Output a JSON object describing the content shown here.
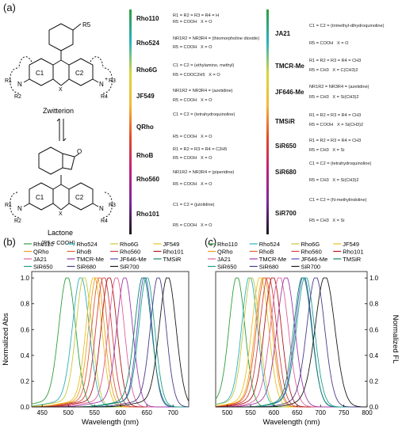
{
  "panel_labels": {
    "a": "(a)",
    "b": "(b)",
    "c": "(c)"
  },
  "structure": {
    "zwitterion_label": "Zwitterion",
    "lactone_label": "Lactone",
    "lactone_note": "(R5 = COOH)",
    "atoms": {
      "r5": "R5",
      "n": "N",
      "r1": "R1",
      "r2": "R2",
      "r3": "R3",
      "r4": "R4",
      "c1": "C1",
      "c2": "C2",
      "x": "X",
      "o": "O",
      "plus": "+"
    }
  },
  "gradient_colors": [
    "#2e9e3e",
    "#2bb0c0",
    "#d8d83a",
    "#f4b83a",
    "#e04a2a",
    "#c0207a",
    "#7a2a9a",
    "#1a1a1a"
  ],
  "dyes_left": [
    {
      "name": "Rho110",
      "lines": [
        "R1 = R2 = R3 = R4 = H",
        "R5 = COOH   X = O"
      ]
    },
    {
      "name": "Rho524",
      "lines": [
        "NR1R2 = NR3R4 = (thiomorpholine dioxide)",
        "R5 = COOH   X = O"
      ]
    },
    {
      "name": "Rho6G",
      "lines": [
        "C1 = C2 = (ethylamino, methyl)",
        "R5 = COOC2H5   X = O"
      ]
    },
    {
      "name": "JF549",
      "lines": [
        "NR1R2 = NR3R4 = (azetidine)",
        "R5 = COOH   X = O"
      ]
    },
    {
      "name": "QRho",
      "lines": [
        "C1 = C2 = (tetrahydroquinoline)",
        "R5 = COOH   X = O"
      ]
    },
    {
      "name": "RhoB",
      "lines": [
        "R1 = R2 = R3 = R4 = C2H5",
        "R5 = COOH   X = O"
      ]
    },
    {
      "name": "Rho560",
      "lines": [
        "NR1R2 = NR3R4 = (piperidine)",
        "R5 = COOH   X = O"
      ]
    },
    {
      "name": "Rho101",
      "lines": [
        "C1 = C2 = (julolidine)",
        "R5 = COOH   X = O"
      ]
    }
  ],
  "dyes_right": [
    {
      "name": "JA21",
      "lines": [
        "C1 = C2 = (trimethyl-dihydroquinoline)",
        "R5 = COOH   X = O"
      ]
    },
    {
      "name": "TMCR-Me",
      "lines": [
        "R1 = R2 = R3 = R4 = CH3",
        "R5 = CH3   X = C(CH3)2"
      ]
    },
    {
      "name": "JF646-Me",
      "lines": [
        "NR1R2 = NR3R4 = (azetidine)",
        "R5 = CH3   X = Si(CH3)2"
      ]
    },
    {
      "name": "TMSiR",
      "lines": [
        "R1 = R2 = R3 = R4 = CH3",
        "R5 = COOH   X = Si(CH3)2"
      ]
    },
    {
      "name": "SiR650",
      "lines": [
        "R1 = R2 = R3 = R4 = CH3",
        "R5 = CH3   X = Si"
      ]
    },
    {
      "name": "SiR680",
      "lines": [
        "C1 = C2 = (tetrahydroquinoline)",
        "R5 = CH3   X = Si(CH3)2"
      ]
    },
    {
      "name": "SiR700",
      "lines": [
        "C1 = C2 = (N-methylindoline)",
        "R5 = CH3   X = Si"
      ]
    }
  ],
  "chart_data": [
    {
      "type": "line",
      "xlabel": "Wavelength (nm)",
      "ylabel": "Normalized Abs",
      "xlim": [
        430,
        730
      ],
      "ylim": [
        0,
        1.05
      ],
      "xticks": [
        450,
        500,
        550,
        600,
        650,
        700
      ],
      "yticks": [
        0.0,
        0.2,
        0.4,
        0.6,
        0.8,
        1.0
      ],
      "legend": {
        "placement": "top",
        "entries": [
          "Rho110",
          "Rho524",
          "Rho6G",
          "JF549",
          "QRho",
          "RhoB",
          "Rho560",
          "Rho101",
          "JA21",
          "TMCR-Me",
          "JF646-Me",
          "TMSiR",
          "SiR650",
          "SiR680",
          "SiR700"
        ]
      },
      "series": [
        {
          "name": "Rho110",
          "color": "#2e9e3e",
          "peak": 498,
          "width": 16
        },
        {
          "name": "Rho524",
          "color": "#2bb0c0",
          "peak": 524,
          "width": 16
        },
        {
          "name": "Rho6G",
          "color": "#c8c83a",
          "peak": 530,
          "width": 15
        },
        {
          "name": "JF549",
          "color": "#e8c020",
          "peak": 549,
          "width": 15
        },
        {
          "name": "QRho",
          "color": "#f0a020",
          "peak": 554,
          "width": 15
        },
        {
          "name": "RhoB",
          "color": "#e06030",
          "peak": 560,
          "width": 15
        },
        {
          "name": "Rho560",
          "color": "#d04040",
          "peak": 568,
          "width": 15
        },
        {
          "name": "Rho101",
          "color": "#b01818",
          "peak": 578,
          "width": 15
        },
        {
          "name": "JA21",
          "color": "#e0609a",
          "peak": 592,
          "width": 15
        },
        {
          "name": "TMCR-Me",
          "color": "#a03aa8",
          "peak": 608,
          "width": 15
        },
        {
          "name": "JF646-Me",
          "color": "#5050c0",
          "peak": 646,
          "width": 14
        },
        {
          "name": "TMSiR",
          "color": "#0a8a6a",
          "peak": 643,
          "width": 16
        },
        {
          "name": "SiR650",
          "color": "#1ea08a",
          "peak": 650,
          "width": 15
        },
        {
          "name": "SiR680",
          "color": "#4a3a8a",
          "peak": 672,
          "width": 15
        },
        {
          "name": "SiR700",
          "color": "#1a1a1a",
          "peak": 690,
          "width": 16
        }
      ]
    },
    {
      "type": "line",
      "xlabel": "Wavelength (nm)",
      "ylabel": "Normalized FL",
      "xlim": [
        475,
        800
      ],
      "ylim": [
        0,
        1.05
      ],
      "xticks": [
        500,
        550,
        600,
        650,
        700,
        750,
        800
      ],
      "yticks": [
        0.0,
        0.2,
        0.4,
        0.6,
        0.8,
        1.0
      ],
      "legend": {
        "placement": "top",
        "entries": [
          "Rho110",
          "Rho524",
          "Rho6G",
          "JF549",
          "QRho",
          "RhoB",
          "Rho560",
          "Rho101",
          "JA21",
          "TMCR-Me",
          "JF646-Me",
          "TMSiR",
          "SiR650",
          "SiR680",
          "SiR700"
        ]
      },
      "series": [
        {
          "name": "Rho110",
          "color": "#2e9e3e",
          "peak": 521,
          "width": 17
        },
        {
          "name": "Rho524",
          "color": "#2bb0c0",
          "peak": 548,
          "width": 17
        },
        {
          "name": "Rho6G",
          "color": "#c8c83a",
          "peak": 552,
          "width": 17
        },
        {
          "name": "JF549",
          "color": "#e8c020",
          "peak": 571,
          "width": 18
        },
        {
          "name": "QRho",
          "color": "#f0a020",
          "peak": 578,
          "width": 18
        },
        {
          "name": "RhoB",
          "color": "#e06030",
          "peak": 581,
          "width": 18
        },
        {
          "name": "Rho560",
          "color": "#d04040",
          "peak": 588,
          "width": 18
        },
        {
          "name": "Rho101",
          "color": "#b01818",
          "peak": 598,
          "width": 18
        },
        {
          "name": "JA21",
          "color": "#e0609a",
          "peak": 612,
          "width": 19
        },
        {
          "name": "TMCR-Me",
          "color": "#a03aa8",
          "peak": 626,
          "width": 19
        },
        {
          "name": "JF646-Me",
          "color": "#5050c0",
          "peak": 664,
          "width": 18
        },
        {
          "name": "TMSiR",
          "color": "#0a8a6a",
          "peak": 662,
          "width": 19
        },
        {
          "name": "SiR650",
          "color": "#1ea08a",
          "peak": 668,
          "width": 19
        },
        {
          "name": "SiR680",
          "color": "#4a3a8a",
          "peak": 690,
          "width": 19
        },
        {
          "name": "SiR700",
          "color": "#1a1a1a",
          "peak": 710,
          "width": 21
        }
      ]
    }
  ]
}
